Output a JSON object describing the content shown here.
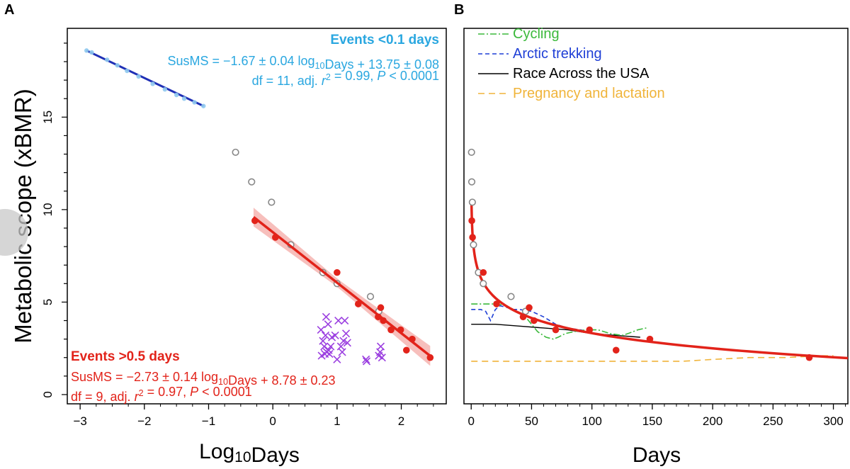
{
  "panel_a_letter": "A",
  "panel_b_letter": "B",
  "ylabel": "Metabolic scope (xBMR)",
  "colors": {
    "short_fit": "#1f2fb5",
    "short_pts": "#8fc9ee",
    "short_text": "#2aa7e0",
    "long": "#e2231a",
    "long_band": "#f4a9a6",
    "cross": "#9b3fe0",
    "open": "#888888",
    "cycling": "#3cb93c",
    "arctic": "#1f3fd6",
    "race": "#000000",
    "pregnancy": "#f0b43a"
  },
  "chart_data": [
    {
      "type": "scatter",
      "panel": "A",
      "xlabel_main": "Log",
      "xlabel_sub": "10",
      "xlabel_end": "Days",
      "ylabel": "Metabolic scope (xBMR)",
      "xlim": [
        -3.2,
        2.7
      ],
      "ylim": [
        -0.5,
        19.8
      ],
      "xticks": [
        -3,
        -2,
        -1,
        0,
        1,
        2
      ],
      "yticks": [
        0,
        5,
        10,
        15
      ],
      "grid": false,
      "annotation_short": {
        "title": "Events <0.1 days",
        "eq": [
          "SusMS = −1.67 ± 0.04 log",
          "10",
          "Days + 13.75 ± 0.08"
        ],
        "stats": [
          "df = 11, adj. ",
          "r",
          "2",
          " = 0.99, ",
          "P",
          " < 0.0001"
        ]
      },
      "annotation_long": {
        "title": "Events >0.5 days",
        "eq": [
          "SusMS = −2.73 ± 0.14 log",
          "10",
          "Days + 8.78 ± 0.23"
        ],
        "stats": [
          "df = 9, adj. ",
          "r",
          "2",
          " = 0.97, ",
          "P",
          " < 0.0001"
        ]
      },
      "fit_short": {
        "slope": -1.67,
        "intercept": 13.75,
        "x_range": [
          -2.9,
          -1.06
        ]
      },
      "fit_long": {
        "slope": -2.73,
        "intercept": 8.78,
        "x_range": [
          -0.3,
          2.45
        ]
      },
      "series": [
        {
          "kind": "short_events",
          "x": [
            -2.9,
            -2.82,
            -2.58,
            -2.42,
            -2.27,
            -2.09,
            -1.87,
            -1.68,
            -1.5,
            -1.38,
            -1.22,
            -1.08
          ],
          "y": [
            18.6,
            18.5,
            18.1,
            17.8,
            17.5,
            17.2,
            16.8,
            16.5,
            16.2,
            16.0,
            15.8,
            15.6
          ]
        },
        {
          "kind": "long_events",
          "x": [
            -0.28,
            0.04,
            1.0,
            1.33,
            1.64,
            1.68,
            1.72,
            1.84,
            1.99,
            2.08,
            2.17,
            2.45
          ],
          "y": [
            9.4,
            8.5,
            6.6,
            4.9,
            4.2,
            4.7,
            4.0,
            3.5,
            3.5,
            2.4,
            3.0,
            2.0
          ]
        },
        {
          "kind": "open_circles",
          "x": [
            -0.58,
            -0.33,
            -0.02,
            0.28,
            0.78,
            1.0,
            1.52,
            1.65
          ],
          "y": [
            13.1,
            11.5,
            10.4,
            8.1,
            6.6,
            6.0,
            5.3,
            4.5
          ]
        },
        {
          "kind": "crosses",
          "x": [
            0.75,
            0.78,
            0.8,
            0.82,
            0.84,
            0.86,
            0.88,
            0.9,
            0.92,
            0.76,
            0.81,
            0.87,
            0.83,
            0.97,
            1.02,
            1.06,
            1.1,
            1.12,
            1.14,
            1.0,
            1.08,
            1.16,
            1.45,
            1.46,
            1.65,
            1.67,
            1.7,
            1.68
          ],
          "y": [
            3.5,
            2.9,
            2.6,
            3.2,
            2.3,
            3.8,
            2.2,
            2.6,
            3.1,
            2.1,
            2.2,
            2.4,
            4.2,
            3.2,
            4.0,
            2.6,
            2.9,
            4.0,
            3.3,
            1.9,
            2.3,
            2.8,
            1.9,
            1.8,
            2.1,
            2.3,
            2.0,
            2.6
          ]
        }
      ]
    },
    {
      "type": "line",
      "panel": "B",
      "xlabel": "Days",
      "xlim": [
        -6,
        312
      ],
      "ylim": [
        -0.5,
        19.8
      ],
      "xticks": [
        0,
        50,
        100,
        150,
        200,
        250,
        300
      ],
      "yticks": [
        0,
        5,
        10,
        15
      ],
      "grid": false,
      "legend_position": "top-left",
      "legend": [
        "Cycling",
        "Arctic trekking",
        "Race Across the USA",
        "Pregnancy and lactation"
      ],
      "series": [
        {
          "name": "Cycling",
          "x": [
            0,
            5,
            12,
            18,
            22,
            28,
            35,
            45,
            55,
            62,
            68,
            72,
            78,
            85,
            95,
            105,
            115,
            125,
            130,
            138,
            145
          ],
          "y": [
            4.9,
            4.9,
            4.9,
            4.9,
            4.9,
            4.8,
            4.6,
            4.2,
            3.4,
            3.1,
            3.0,
            3.1,
            3.3,
            3.4,
            3.5,
            3.5,
            3.3,
            3.2,
            3.3,
            3.5,
            3.6
          ]
        },
        {
          "name": "Arctic trekking",
          "x": [
            0,
            8,
            12,
            16,
            20,
            24,
            30,
            35,
            40,
            50,
            60,
            70,
            80,
            90,
            100
          ],
          "y": [
            4.6,
            4.6,
            4.5,
            4.0,
            4.6,
            4.8,
            4.7,
            4.6,
            4.6,
            4.5,
            4.2,
            3.8,
            3.6,
            3.5,
            3.4
          ]
        },
        {
          "name": "Race Across the USA",
          "x": [
            0,
            20,
            40,
            60,
            80,
            100,
            120,
            140
          ],
          "y": [
            3.8,
            3.8,
            3.7,
            3.6,
            3.5,
            3.3,
            3.2,
            3.1
          ]
        },
        {
          "name": "Pregnancy and lactation",
          "x": [
            0,
            50,
            100,
            150,
            175,
            200,
            230,
            260,
            290,
            300
          ],
          "y": [
            1.8,
            1.8,
            1.8,
            1.8,
            1.8,
            1.9,
            2.0,
            2.0,
            2.1,
            2.1
          ]
        },
        {
          "kind": "fit_curve",
          "equation": "y = 8.78 - 2.73 * log10(x)",
          "x_from": 0.25,
          "x_to": 312
        },
        {
          "kind": "long_events",
          "x": [
            0.5,
            1.1,
            10,
            21,
            43,
            48,
            52,
            70,
            98,
            120,
            148,
            280
          ],
          "y": [
            9.4,
            8.5,
            6.6,
            4.9,
            4.2,
            4.7,
            4.0,
            3.5,
            3.5,
            2.4,
            3.0,
            2.0
          ]
        },
        {
          "kind": "open_circles",
          "x": [
            0.26,
            0.47,
            0.96,
            1.9,
            6,
            10,
            33,
            45
          ],
          "y": [
            13.1,
            11.5,
            10.4,
            8.1,
            6.6,
            6.0,
            5.3,
            4.5
          ]
        }
      ]
    }
  ]
}
